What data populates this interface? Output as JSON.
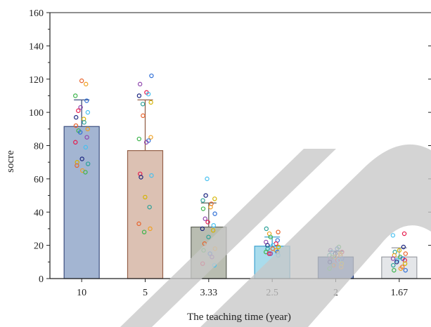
{
  "chart_data": {
    "type": "bar",
    "xlabel": "The teaching time (year)",
    "ylabel": "socre",
    "ylim": [
      0,
      160
    ],
    "yticks": [
      0,
      20,
      40,
      60,
      80,
      100,
      120,
      140,
      160
    ],
    "categories": [
      "10",
      "5",
      "3.33",
      "2.5",
      "2",
      "1.67"
    ],
    "values": [
      91.5,
      77,
      31,
      19.5,
      13,
      13
    ],
    "error_upper": [
      107.5,
      107.5,
      45.5,
      25,
      16.5,
      18.5
    ],
    "bar_colors": [
      "#a3b5d2",
      "#dcc1b3",
      "#b9bdb1",
      "#a9dcec",
      "#6f8bc8",
      "#e4e6e9"
    ],
    "bar_edge_colors": [
      "#3c4f7f",
      "#95614a",
      "#60645a",
      "#3aa0cf",
      "#22386d",
      "#9b9ea4"
    ],
    "points": [
      [
        119,
        117,
        110,
        107,
        103,
        101,
        100,
        97,
        96,
        94,
        92,
        90,
        89,
        88,
        85,
        82,
        79,
        72,
        70,
        69,
        68,
        65,
        64
      ],
      [
        122,
        117,
        112,
        111,
        110,
        106,
        105,
        98,
        85,
        84,
        83,
        82,
        63,
        62,
        61,
        49,
        43,
        33,
        30,
        28
      ],
      [
        60,
        50,
        48,
        47,
        45,
        43,
        42,
        39,
        36,
        34,
        32,
        30,
        29,
        25,
        21,
        18,
        17,
        15,
        13,
        9,
        8
      ],
      [
        30,
        28,
        27,
        25,
        23,
        22,
        21,
        20,
        20,
        19,
        18,
        18,
        17,
        16,
        16,
        15,
        15,
        14
      ],
      [
        19,
        18,
        17,
        16,
        16,
        15,
        15,
        14,
        14,
        13,
        13,
        12,
        12,
        11,
        11,
        10,
        9,
        8,
        8,
        7,
        6
      ],
      [
        27,
        26,
        19,
        17,
        16,
        15,
        14,
        13,
        12,
        12,
        11,
        11,
        10,
        9,
        8,
        7,
        6,
        5,
        5
      ]
    ],
    "point_colors": [
      "#e8632b",
      "#f0a020",
      "#3cb44b",
      "#2f6fd6",
      "#8e44ad",
      "#e6194b",
      "#46c0f0",
      "#1a237e",
      "#d4b400",
      "#2aa198"
    ]
  }
}
